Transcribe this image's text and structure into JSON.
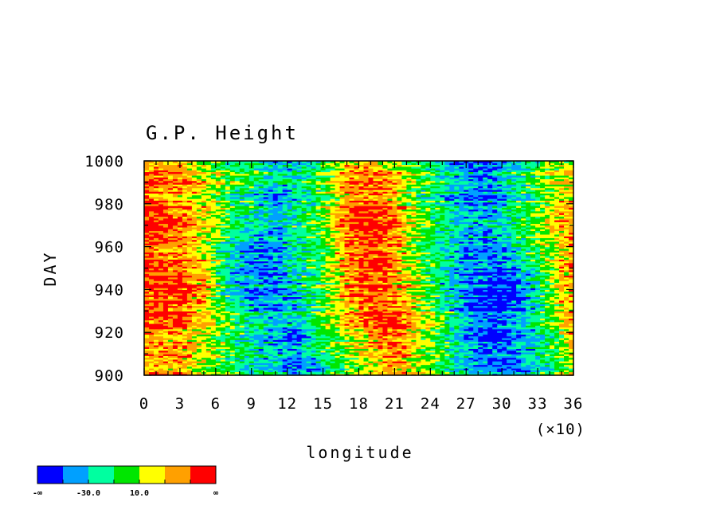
{
  "chart_data": {
    "type": "heatmap",
    "title": "G.P. Height",
    "xlabel": "longitude",
    "ylabel": "DAY",
    "x_multiplier_label": "(×10)",
    "xlim": [
      0,
      36
    ],
    "ylim": [
      900,
      1000
    ],
    "x_ticks": [
      "0",
      "3",
      "6",
      "9",
      "12",
      "15",
      "18",
      "21",
      "24",
      "27",
      "30",
      "33",
      "36"
    ],
    "y_ticks": [
      "900",
      "920",
      "940",
      "960",
      "980",
      "1000"
    ],
    "colorbar": {
      "colors": [
        "#0000ff",
        "#00a0ff",
        "#00ffa0",
        "#00e600",
        "#ffff00",
        "#ffa000",
        "#ff0000"
      ],
      "labels": [
        "-∞",
        "-30.0",
        "10.0",
        "∞"
      ]
    },
    "pattern_x": [
      0,
      3,
      5,
      7,
      9,
      11,
      13,
      15,
      17,
      19,
      21,
      23,
      25,
      27,
      29,
      31,
      33,
      34.5,
      36
    ],
    "pattern_y": [
      900,
      920,
      940,
      960,
      980,
      1000
    ],
    "pattern_levels": [
      [
        5,
        5,
        4,
        3,
        2,
        2,
        1,
        2,
        3,
        4,
        5,
        4,
        3,
        2,
        1,
        1,
        2,
        3,
        4
      ],
      [
        5,
        5,
        4,
        3,
        2,
        1,
        1,
        3,
        4,
        5,
        6,
        4,
        3,
        1,
        0,
        1,
        2,
        3,
        5
      ],
      [
        6,
        6,
        5,
        2,
        1,
        1,
        2,
        3,
        5,
        6,
        5,
        4,
        2,
        1,
        0,
        0,
        2,
        4,
        5
      ],
      [
        6,
        5,
        4,
        2,
        1,
        1,
        2,
        3,
        5,
        6,
        5,
        3,
        2,
        1,
        1,
        2,
        3,
        4,
        5
      ],
      [
        6,
        5,
        4,
        3,
        2,
        1,
        2,
        3,
        5,
        6,
        5,
        3,
        2,
        1,
        1,
        2,
        3,
        4,
        5
      ],
      [
        5,
        5,
        4,
        3,
        3,
        2,
        2,
        3,
        5,
        5,
        4,
        3,
        2,
        1,
        1,
        2,
        3,
        4,
        4
      ]
    ]
  }
}
